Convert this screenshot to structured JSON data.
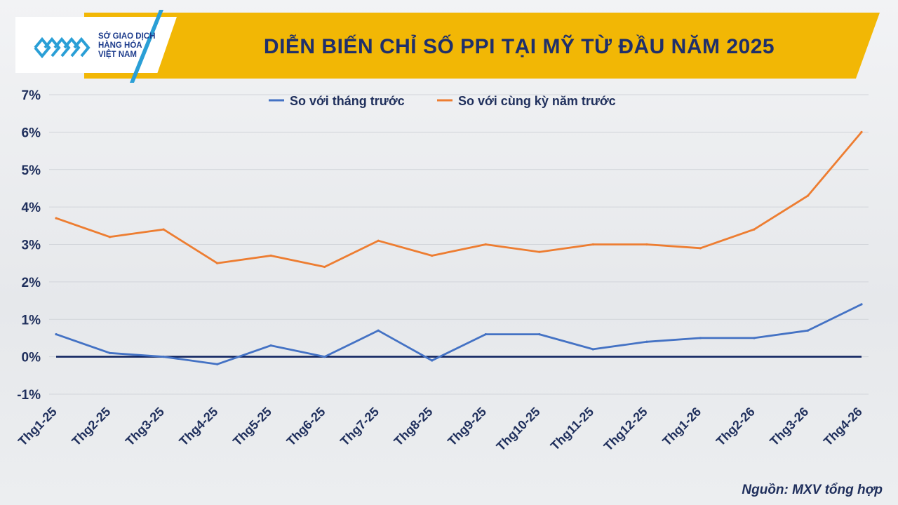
{
  "header": {
    "title": "DIỄN BIẾN CHỈ SỐ PPI TẠI MỸ TỪ ĐẦU NĂM 2025",
    "logo_lines": [
      "SỞ GIAO DỊCH",
      "HÀNG HÓA",
      "VIỆT NAM"
    ],
    "colors": {
      "banner": "#f2b705",
      "logo_accent": "#2a9fd6",
      "title": "#1f2f6b"
    }
  },
  "source_note": "Nguồn: MXV tổng hợp",
  "chart_data": {
    "type": "line",
    "title": "DIỄN BIẾN CHỈ SỐ PPI TẠI MỸ TỪ ĐẦU NĂM 2025",
    "xlabel": "",
    "ylabel": "",
    "ylim": [
      -1,
      7
    ],
    "yticks": [
      -1,
      0,
      1,
      2,
      3,
      4,
      5,
      6,
      7
    ],
    "ytick_labels": [
      "-1%",
      "0%",
      "1%",
      "2%",
      "3%",
      "4%",
      "5%",
      "6%",
      "7%"
    ],
    "grid": true,
    "legend_position": "top-center",
    "categories": [
      "Thg1-25",
      "Thg2-25",
      "Thg3-25",
      "Thg4-25",
      "Thg5-25",
      "Thg6-25",
      "Thg7-25",
      "Thg8-25",
      "Thg9-25",
      "Thg10-25",
      "Thg11-25",
      "Thg12-25",
      "Thg1-26",
      "Thg2-26",
      "Thg3-26",
      "Thg4-26"
    ],
    "series": [
      {
        "name": "So với tháng trước",
        "color": "#4472c4",
        "values": [
          0.6,
          0.1,
          0.0,
          -0.2,
          0.3,
          0.0,
          0.7,
          -0.1,
          0.6,
          0.6,
          0.2,
          0.4,
          0.5,
          0.5,
          0.7,
          1.4
        ]
      },
      {
        "name": "So với cùng kỳ năm trước",
        "color": "#ed7d31",
        "values": [
          3.7,
          3.2,
          3.4,
          2.5,
          2.7,
          2.4,
          3.1,
          2.7,
          3.0,
          2.8,
          3.0,
          3.0,
          2.9,
          3.4,
          4.3,
          6.0
        ]
      }
    ],
    "zero_line_color": "#0b1f5c"
  }
}
